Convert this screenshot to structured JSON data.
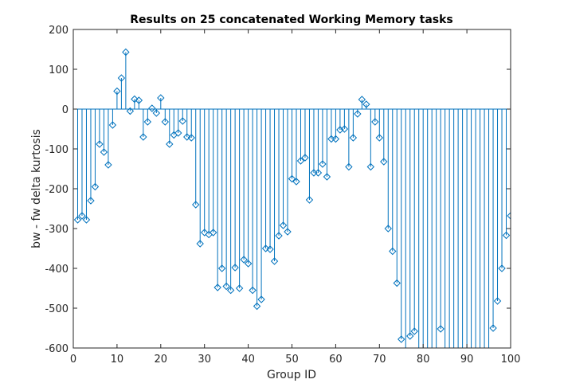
{
  "chart_data": {
    "type": "stem",
    "title": "Results on 25 concatenated Working Memory tasks",
    "xlabel": "Group ID",
    "ylabel": "bw - fw delta kurtosis",
    "xlim": [
      0,
      100
    ],
    "ylim": [
      -600,
      200
    ],
    "xticks": [
      0,
      10,
      20,
      30,
      40,
      50,
      60,
      70,
      80,
      90,
      100
    ],
    "yticks": [
      -600,
      -500,
      -400,
      -300,
      -200,
      -100,
      0,
      100,
      200
    ],
    "baseline": 0,
    "grid": false,
    "color": "#0072BD",
    "marker": "diamond",
    "x": [
      1,
      2,
      3,
      4,
      5,
      6,
      7,
      8,
      9,
      10,
      11,
      12,
      13,
      14,
      15,
      16,
      17,
      18,
      19,
      20,
      21,
      22,
      23,
      24,
      25,
      26,
      27,
      28,
      29,
      30,
      31,
      32,
      33,
      34,
      35,
      36,
      37,
      38,
      39,
      40,
      41,
      42,
      43,
      44,
      45,
      46,
      47,
      48,
      49,
      50,
      51,
      52,
      53,
      54,
      55,
      56,
      57,
      58,
      59,
      60,
      61,
      62,
      63,
      64,
      65,
      66,
      67,
      68,
      69,
      70,
      71,
      72,
      73,
      74,
      75,
      76,
      77,
      78,
      79,
      80,
      81,
      82,
      83,
      84,
      85,
      86,
      87,
      88,
      89,
      90,
      91,
      92,
      93,
      94,
      95,
      96,
      97,
      98,
      99,
      100
    ],
    "y": [
      -278,
      -268,
      -278,
      -230,
      -195,
      -88,
      -108,
      -140,
      -40,
      45,
      78,
      143,
      -5,
      25,
      22,
      -70,
      -32,
      2,
      -10,
      28,
      -32,
      -88,
      -65,
      -60,
      -30,
      -70,
      -72,
      -240,
      -338,
      -310,
      -315,
      -310,
      -448,
      -400,
      -445,
      -455,
      -398,
      -450,
      -378,
      -388,
      -455,
      -495,
      -478,
      -350,
      -352,
      -382,
      -318,
      -292,
      -308,
      -175,
      -182,
      -130,
      -122,
      -228,
      -160,
      -160,
      -138,
      -170,
      -75,
      -75,
      -52,
      -50,
      -145,
      -72,
      -12,
      24,
      12,
      -145,
      -32,
      -72,
      -132,
      -300,
      -357,
      -437,
      -578,
      -620,
      -570,
      -558,
      -620,
      -620,
      -620,
      -620,
      -620,
      -552,
      -620,
      -620,
      -620,
      -620,
      -620,
      -620,
      -620,
      -620,
      -620,
      -620,
      -620,
      -550,
      -482,
      -400,
      -317,
      -268
    ]
  }
}
